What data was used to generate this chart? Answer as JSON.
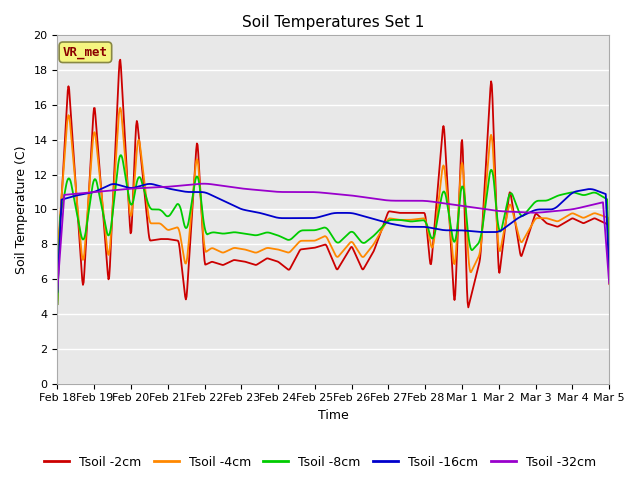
{
  "title": "Soil Temperatures Set 1",
  "xlabel": "Time",
  "ylabel": "Soil Temperature (C)",
  "ylim": [
    0,
    20
  ],
  "fig_bg_color": "#ffffff",
  "plot_bg_color": "#e8e8e8",
  "grid_color": "#ffffff",
  "annotation_text": "VR_met",
  "annotation_bg": "#f5f580",
  "annotation_border": "#888844",
  "annotation_text_color": "#8b0000",
  "series_colors": {
    "Tsoil -2cm": "#cc0000",
    "Tsoil -4cm": "#ff8800",
    "Tsoil -8cm": "#00cc00",
    "Tsoil -16cm": "#0000cc",
    "Tsoil -32cm": "#9900cc"
  },
  "tick_labels": [
    "Feb 18",
    "Feb 19",
    "Feb 20",
    "Feb 21",
    "Feb 22",
    "Feb 23",
    "Feb 24",
    "Feb 25",
    "Feb 26",
    "Feb 27",
    "Feb 28",
    "Mar 1",
    "Mar 2",
    "Mar 3",
    "Mar 4",
    "Mar 5"
  ],
  "yticks": [
    0,
    2,
    4,
    6,
    8,
    10,
    12,
    14,
    16,
    18,
    20
  ],
  "legend_labels": [
    "Tsoil -2cm",
    "Tsoil -4cm",
    "Tsoil -8cm",
    "Tsoil -16cm",
    "Tsoil -32cm"
  ],
  "linewidth": 1.3,
  "title_fontsize": 11,
  "axis_fontsize": 9,
  "tick_fontsize": 8,
  "legend_fontsize": 9
}
